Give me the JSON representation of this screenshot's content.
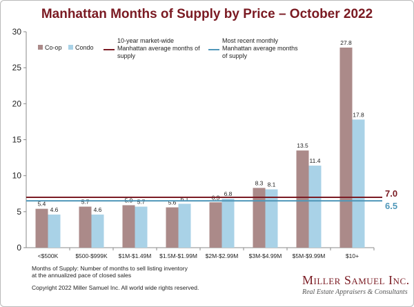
{
  "title": "Manhattan Months of Supply by Price – October 2022",
  "footnote": {
    "definition": "Months of Supply: Number of months to sell listing inventory at the annualized pace of closed sales",
    "copyright": "Copyright 2022 Miller Samuel Inc. All world wide rights reserved."
  },
  "brand": {
    "name": "Miller Samuel Inc.",
    "tagline": "Real Estate Appraisers & Consultants"
  },
  "colors": {
    "coop": "#ab8a89",
    "condo": "#a9d2e7",
    "avg10": "#7a1a22",
    "recent": "#4f97b9"
  },
  "chart_data": {
    "type": "bar",
    "title": "Manhattan Months of Supply by Price – October 2022",
    "categories": [
      "<$500K",
      "$500-$999K",
      "$1M-$1.49M",
      "$1.5M-$1.99M",
      "$2M-$2.99M",
      "$3M-$4.99M",
      "$5M-$9.99M",
      "$10+"
    ],
    "series": [
      {
        "name": "Co-op",
        "values": [
          5.4,
          5.7,
          5.9,
          5.6,
          6.3,
          8.3,
          13.5,
          27.8
        ],
        "labels": [
          "5.4",
          "5.7",
          "5.9",
          "5.6",
          "6.3",
          "8.3",
          "13.5",
          "27.8"
        ]
      },
      {
        "name": "Condo",
        "values": [
          4.6,
          4.6,
          5.7,
          6.1,
          6.8,
          8.1,
          11.4,
          17.8
        ],
        "labels": [
          "4.6",
          "4.6",
          "5.7",
          "6.1",
          "6.8",
          "8.1",
          "11.4",
          "17.8"
        ]
      }
    ],
    "reference_lines": [
      {
        "name": "10-year market-wide Manhattan average months of supply",
        "value": 7.0,
        "label": "7.0",
        "lines": [
          "10-year market-wide",
          "Manhattan average months of",
          "supply"
        ]
      },
      {
        "name": "Most recent monthly Manhattan average months of supply",
        "value": 6.5,
        "label": "6.5",
        "lines": [
          "Most recent monthly",
          "Manhattan average months",
          "of supply"
        ]
      }
    ],
    "ylim": [
      0,
      30
    ],
    "yticks": [
      "0",
      "5",
      "10",
      "15",
      "20",
      "25",
      "30"
    ],
    "xlabel": "",
    "ylabel": "",
    "grid": false,
    "legend": "top-left"
  }
}
